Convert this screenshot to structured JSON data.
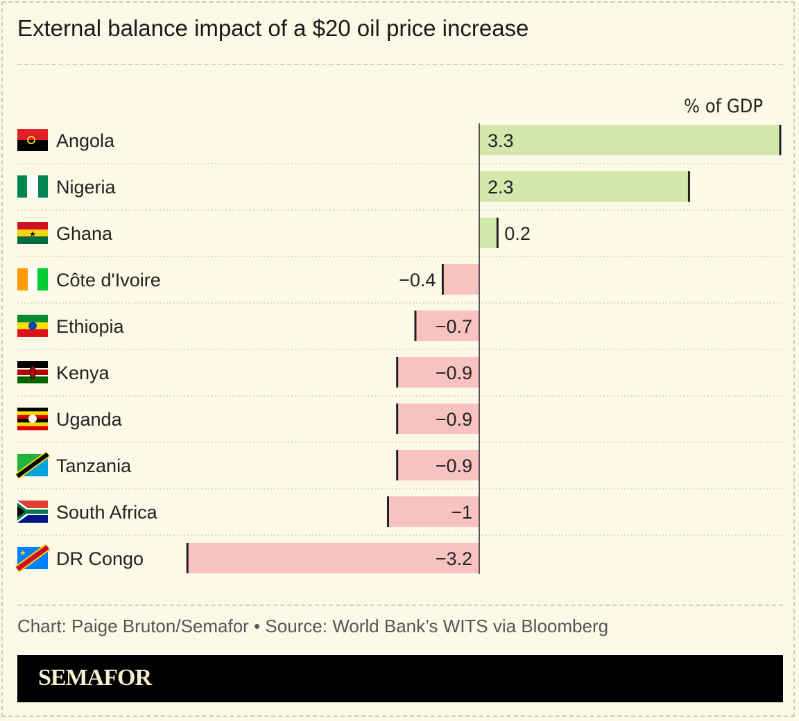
{
  "chart_data": {
    "type": "bar",
    "orientation": "horizontal",
    "title": "External balance impact of a $20 oil price increase",
    "unit_label": "% of GDP",
    "categories": [
      "Angola",
      "Nigeria",
      "Ghana",
      "Côte d'Ivoire",
      "Ethiopia",
      "Kenya",
      "Uganda",
      "Tanzania",
      "South Africa",
      "DR Congo"
    ],
    "values": [
      3.3,
      2.3,
      0.2,
      -0.4,
      -0.7,
      -0.9,
      -0.9,
      -0.9,
      -1,
      -3.2
    ],
    "value_labels": [
      "3.3",
      "2.3",
      "0.2",
      "−0.4",
      "−0.7",
      "−0.9",
      "−0.9",
      "−0.9",
      "−1",
      "−3.2"
    ],
    "flags": [
      "angola",
      "nigeria",
      "ghana",
      "cote-divoire",
      "ethiopia",
      "kenya",
      "uganda",
      "tanzania",
      "south-africa",
      "dr-congo"
    ],
    "xlim": [
      -3.2,
      3.3
    ],
    "colors": {
      "positive": "#d2e8ac",
      "negative": "#f8c2c0",
      "axis": "#222222"
    }
  },
  "footer": {
    "credit": "Chart: Paige Bruton/Semafor • Source: World Bank’s WITS via Bloomberg"
  },
  "brand": {
    "logo": "SEMAFOR"
  }
}
